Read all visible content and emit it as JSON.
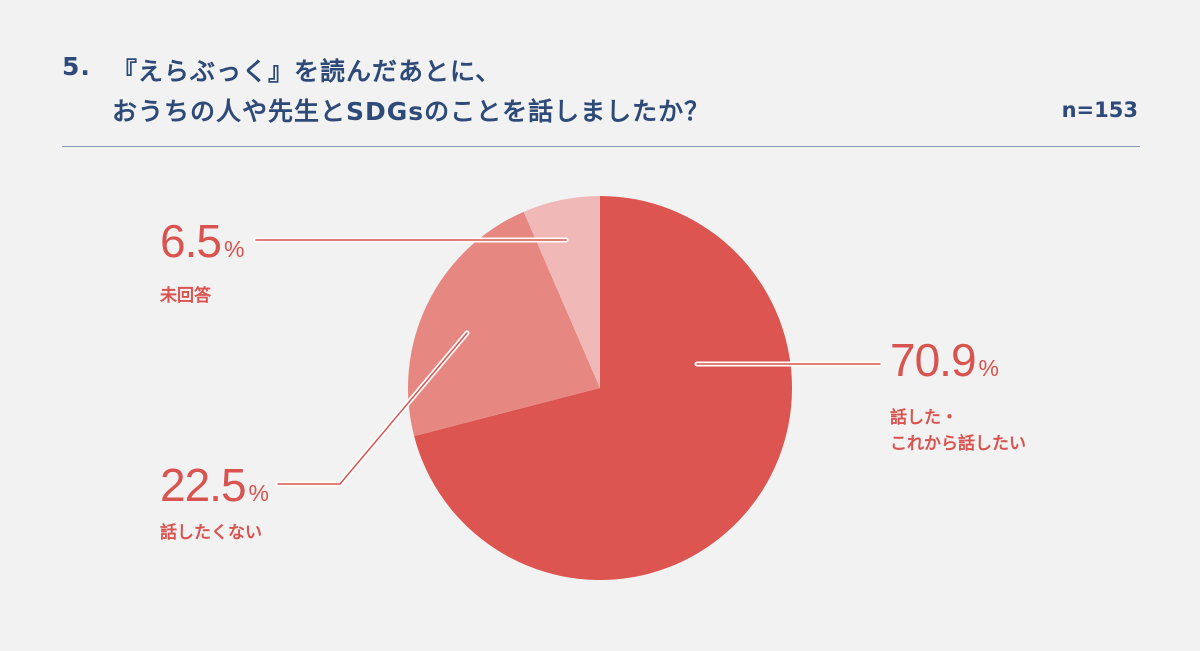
{
  "title": {
    "number": "5.",
    "line1": "『えらぶっく』を読んだあとに、",
    "line2": "おうちの人や先生とSDGsのことを話しましたか？"
  },
  "sample_size": "n=153",
  "colors": {
    "title": "#2e4a78",
    "divider": "#8a9ab5",
    "label": "#d9534f",
    "background": "#f2f2f2"
  },
  "percent_unit": "%",
  "chart_data": {
    "type": "pie",
    "start": "12 o'clock",
    "direction": "clockwise",
    "slices": [
      {
        "label": "話した・\nこれから話したい",
        "label_lines": [
          "話した・",
          "これから話したい"
        ],
        "value": 70.9,
        "value_text": "70.9",
        "color": "#dc5550"
      },
      {
        "label": "話したくない",
        "label_lines": [
          "話したくない"
        ],
        "value": 22.5,
        "value_text": "22.5",
        "color": "#e68782"
      },
      {
        "label": "未回答",
        "label_lines": [
          "未回答"
        ],
        "value": 6.5,
        "value_text": "6.5",
        "color": "#f0b9b7"
      }
    ]
  }
}
